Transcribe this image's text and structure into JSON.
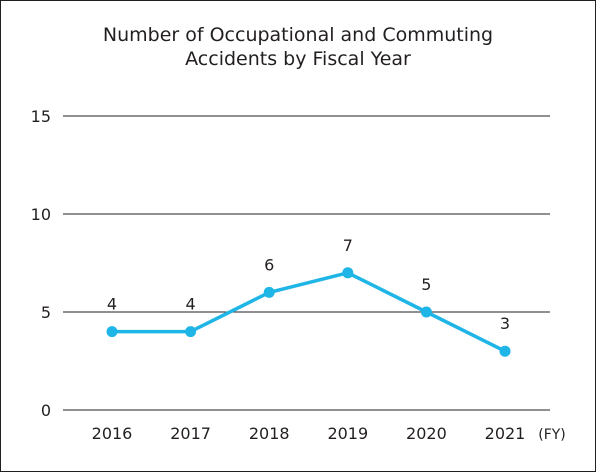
{
  "chart_data": {
    "type": "line",
    "title": "Number of Occupational and Commuting\nAccidents by Fiscal Year",
    "categories": [
      "2016",
      "2017",
      "2018",
      "2019",
      "2020",
      "2021"
    ],
    "x_unit": "(FY)",
    "series": [
      {
        "values": [
          4,
          4,
          6,
          7,
          5,
          3
        ],
        "color": "#1fb5e6"
      }
    ],
    "data_labels": [
      "4",
      "4",
      "6",
      "7",
      "5",
      "3"
    ],
    "ylim": [
      0,
      15
    ],
    "yticks": [
      "0",
      "5",
      "10",
      "15"
    ],
    "grid": true,
    "legend": "none",
    "gridline_color": "#231f20"
  }
}
